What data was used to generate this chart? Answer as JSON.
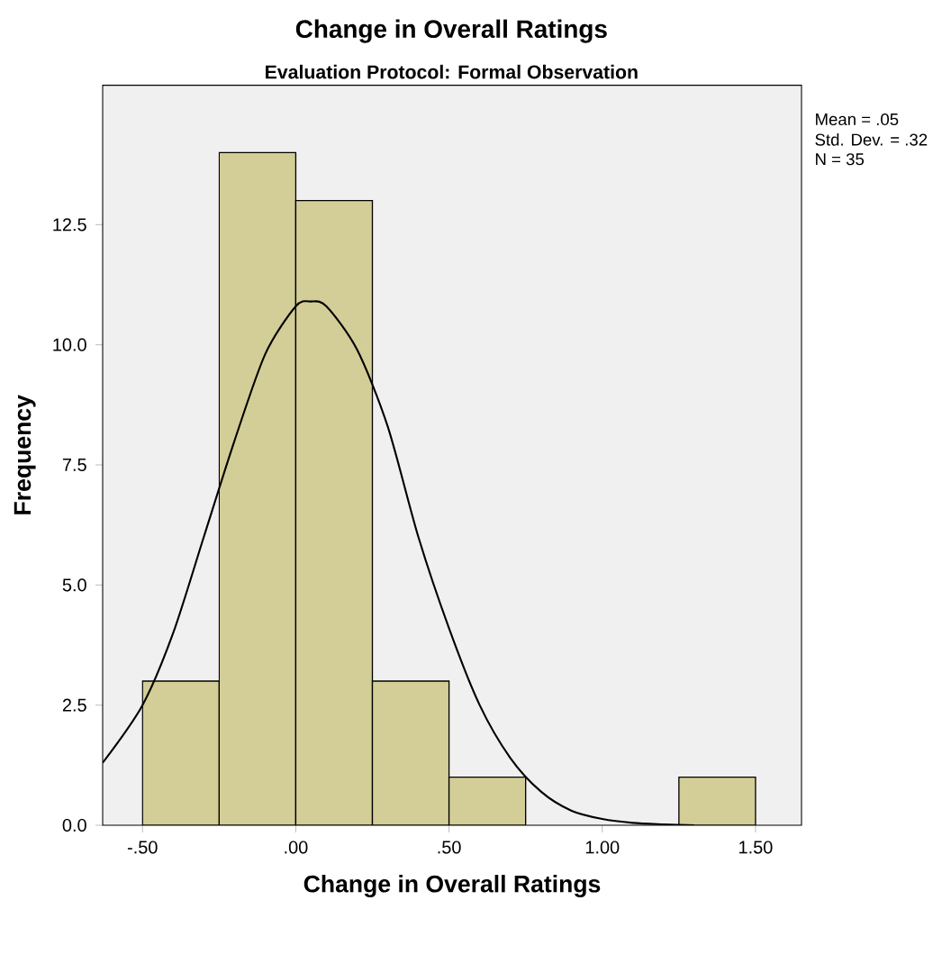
{
  "chart_data": {
    "type": "histogram",
    "title": "Change in Overall Ratings",
    "subtitle": "Evaluation Protocol: Formal Observation",
    "xlabel": "Change in Overall Ratings",
    "ylabel": "Frequency",
    "annotations": [
      "Mean = .05",
      "Std. Dev. = .32",
      "N = 35"
    ],
    "series": [
      {
        "bins": [
          -0.5,
          -0.25,
          0,
          0.25,
          0.5,
          0.75,
          1.0,
          1.25,
          1.5
        ],
        "values": [
          3,
          14,
          13,
          3,
          1,
          0,
          0,
          1
        ],
        "color": "#d3ce97"
      },
      {
        "type": "line",
        "x": [
          -0.63,
          -0.5,
          -0.4,
          -0.3,
          -0.2,
          -0.1,
          0.0,
          0.05,
          0.1,
          0.2,
          0.3,
          0.4,
          0.5,
          0.6,
          0.7,
          0.8,
          0.9,
          1.0,
          1.1,
          1.2,
          1.3
        ],
        "values": [
          1.3,
          2.5,
          4.0,
          6.0,
          8.0,
          9.8,
          10.8,
          10.9,
          10.8,
          9.9,
          8.3,
          6.0,
          4.1,
          2.5,
          1.4,
          0.7,
          0.3,
          0.13,
          0.05,
          0.02,
          0.0
        ],
        "color": "#000000"
      }
    ],
    "xlim": [
      -0.63,
      1.65
    ],
    "ylim": [
      0,
      15.4
    ],
    "xticks": [
      {
        "value": -0.5,
        "label": "-.50"
      },
      {
        "value": 0,
        "label": ".00"
      },
      {
        "value": 0.5,
        "label": ".50"
      },
      {
        "value": 1.0,
        "label": "1.00"
      },
      {
        "value": 1.5,
        "label": "1.50"
      }
    ],
    "yticks": [
      {
        "value": 0,
        "label": "0.0"
      },
      {
        "value": 2.5,
        "label": "2.5"
      },
      {
        "value": 5,
        "label": "5.0"
      },
      {
        "value": 7.5,
        "label": "7.5"
      },
      {
        "value": 10,
        "label": "10.0"
      },
      {
        "value": 12.5,
        "label": "12.5"
      }
    ],
    "grid": false
  }
}
